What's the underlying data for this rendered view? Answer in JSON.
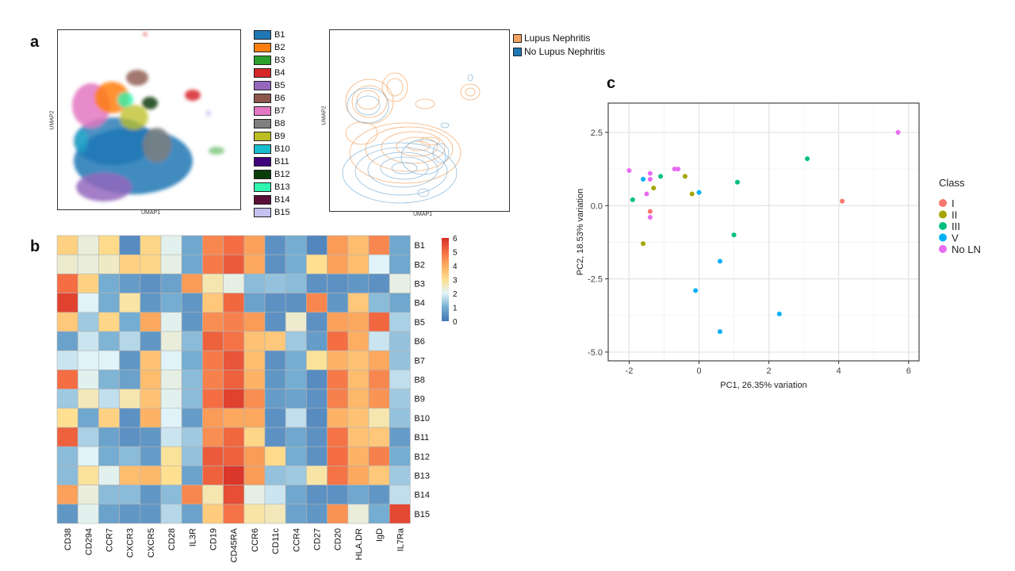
{
  "panels": {
    "a": "a",
    "b": "b",
    "c": "c"
  },
  "umap": {
    "xlabel": "UMAP1",
    "ylabel": "UMAP2",
    "clusters": [
      {
        "label": "B1",
        "color": "#1f77b4"
      },
      {
        "label": "B2",
        "color": "#ff7f0e"
      },
      {
        "label": "B3",
        "color": "#2ca02c"
      },
      {
        "label": "B4",
        "color": "#d62728"
      },
      {
        "label": "B5",
        "color": "#9467bd"
      },
      {
        "label": "B6",
        "color": "#8c564b"
      },
      {
        "label": "B7",
        "color": "#e377c2"
      },
      {
        "label": "B8",
        "color": "#7f7f7f"
      },
      {
        "label": "B9",
        "color": "#bcbd22"
      },
      {
        "label": "B10",
        "color": "#17becf"
      },
      {
        "label": "B11",
        "color": "#3f007d"
      },
      {
        "label": "B12",
        "color": "#0b3d0b"
      },
      {
        "label": "B13",
        "color": "#2ef5b0"
      },
      {
        "label": "B14",
        "color": "#5a0f38"
      },
      {
        "label": "B15",
        "color": "#c5c1ef"
      }
    ],
    "groups": [
      {
        "label": "Lupus Nephritis",
        "color": "#f4a460"
      },
      {
        "label": "No Lupus Nephritis",
        "color": "#1f77b4"
      }
    ]
  },
  "chart_data": [
    {
      "type": "heatmap",
      "rows": [
        "B1",
        "B2",
        "B3",
        "B4",
        "B5",
        "B6",
        "B7",
        "B8",
        "B9",
        "B10",
        "B11",
        "B12",
        "B13",
        "B14",
        "B15"
      ],
      "columns": [
        "CD38",
        "CD294",
        "CCR7",
        "CXCR3",
        "CXCR5",
        "CD28",
        "IL3R",
        "CD19",
        "CD45RA",
        "CCR6",
        "CD11c",
        "CCR4",
        "CD27",
        "CD20",
        "HLA.DR",
        "IgD",
        "IL7Ra"
      ],
      "values": [
        [
          3.3,
          2.3,
          3.1,
          0.4,
          3.2,
          2.1,
          0.9,
          4.6,
          5.0,
          4.2,
          0.5,
          1.0,
          0.3,
          4.3,
          3.7,
          4.6,
          0.9
        ],
        [
          2.4,
          2.3,
          2.5,
          3.3,
          3.2,
          2.2,
          0.9,
          4.8,
          5.3,
          4.1,
          0.5,
          1.0,
          3.0,
          4.2,
          3.7,
          2.0,
          0.9
        ],
        [
          5.0,
          3.3,
          1.0,
          0.7,
          0.5,
          0.8,
          4.3,
          2.7,
          2.2,
          1.2,
          1.3,
          1.2,
          0.5,
          0.5,
          0.6,
          0.5,
          2.2
        ],
        [
          5.7,
          2.0,
          1.0,
          2.8,
          0.6,
          1.0,
          0.6,
          3.5,
          5.1,
          0.8,
          0.5,
          0.5,
          4.6,
          0.6,
          3.5,
          1.2,
          0.9
        ],
        [
          3.5,
          1.4,
          3.2,
          1.0,
          4.1,
          2.1,
          0.6,
          4.5,
          4.7,
          4.3,
          0.5,
          2.4,
          0.5,
          4.2,
          4.1,
          5.1,
          1.5
        ],
        [
          0.8,
          1.8,
          1.1,
          1.6,
          0.6,
          2.3,
          1.2,
          5.2,
          4.9,
          3.6,
          3.5,
          1.4,
          0.7,
          5.0,
          4.0,
          1.8,
          1.3
        ],
        [
          1.8,
          2.0,
          2.0,
          0.6,
          3.6,
          2.0,
          1.0,
          4.8,
          5.4,
          3.7,
          0.5,
          1.0,
          2.9,
          3.9,
          3.6,
          4.1,
          1.3
        ],
        [
          5.0,
          2.1,
          1.1,
          0.8,
          3.7,
          2.2,
          1.2,
          4.7,
          5.2,
          3.9,
          0.6,
          1.0,
          0.4,
          4.8,
          3.7,
          4.6,
          1.7
        ],
        [
          1.4,
          2.6,
          1.7,
          2.7,
          3.6,
          2.1,
          1.2,
          5.0,
          5.7,
          4.5,
          0.7,
          0.8,
          0.5,
          4.7,
          3.8,
          4.4,
          1.4
        ],
        [
          3.0,
          0.9,
          3.3,
          0.5,
          3.9,
          2.0,
          0.7,
          4.3,
          4.1,
          4.1,
          0.5,
          1.7,
          0.4,
          3.9,
          3.6,
          2.7,
          1.3
        ],
        [
          5.2,
          1.5,
          0.8,
          0.5,
          0.6,
          1.8,
          1.4,
          4.5,
          5.1,
          3.2,
          0.5,
          0.9,
          0.5,
          4.9,
          3.6,
          3.5,
          0.7
        ],
        [
          1.2,
          2.0,
          1.0,
          1.2,
          0.7,
          2.9,
          1.3,
          5.3,
          5.2,
          4.3,
          3.1,
          1.0,
          0.5,
          5.0,
          3.9,
          4.7,
          1.0
        ],
        [
          1.2,
          2.9,
          2.1,
          3.7,
          3.8,
          3.0,
          0.8,
          5.2,
          5.9,
          4.3,
          1.3,
          1.4,
          2.8,
          4.9,
          4.1,
          3.5,
          1.4
        ],
        [
          4.2,
          2.3,
          1.2,
          1.2,
          0.6,
          1.2,
          4.6,
          2.7,
          5.5,
          2.2,
          1.8,
          0.9,
          0.5,
          0.5,
          0.9,
          0.6,
          1.7
        ],
        [
          0.6,
          2.1,
          0.8,
          0.6,
          0.6,
          1.6,
          0.8,
          3.4,
          4.9,
          2.8,
          2.6,
          0.8,
          0.6,
          4.4,
          2.3,
          1.0,
          5.6
        ]
      ],
      "scale": {
        "min": 0,
        "max": 6,
        "ticks": [
          0,
          1,
          2,
          3,
          4,
          5,
          6
        ]
      }
    },
    {
      "type": "scatter",
      "xlabel": "PC1, 26.35% variation",
      "ylabel": "PC2, 18.53% variation",
      "xlim": [
        -2.6,
        6.3
      ],
      "ylim": [
        -5.3,
        3.5
      ],
      "xticks": [
        -2,
        0,
        2,
        4,
        6
      ],
      "yticks": [
        2.5,
        0.0,
        -2.5,
        -5.0
      ],
      "xtick_labels": [
        "-2",
        "0",
        "2",
        "4",
        "6"
      ],
      "ytick_labels": [
        "2.5",
        "0.0",
        "-2.5",
        "-5.0"
      ],
      "legend_title": "Class",
      "legend_position": "right",
      "series": [
        {
          "name": "I",
          "color": "#f8766d",
          "points": [
            [
              -1.4,
              -0.2
            ],
            [
              4.1,
              0.15
            ]
          ]
        },
        {
          "name": "II",
          "color": "#a3a500",
          "points": [
            [
              -1.3,
              0.6
            ],
            [
              -0.4,
              1.0
            ],
            [
              -0.2,
              0.4
            ],
            [
              -1.6,
              -1.3
            ]
          ]
        },
        {
          "name": "III",
          "color": "#00bf7d",
          "points": [
            [
              -1.1,
              1.0
            ],
            [
              -1.9,
              0.2
            ],
            [
              1.1,
              0.8
            ],
            [
              3.1,
              1.6
            ],
            [
              1.0,
              -1.0
            ]
          ]
        },
        {
          "name": "V",
          "color": "#00b0f6",
          "points": [
            [
              -1.6,
              0.9
            ],
            [
              0.0,
              0.45
            ],
            [
              0.6,
              -1.9
            ],
            [
              -0.1,
              -2.9
            ],
            [
              2.3,
              -3.7
            ],
            [
              0.6,
              -4.3
            ]
          ]
        },
        {
          "name": "No LN",
          "color": "#e76bf3",
          "points": [
            [
              -2.0,
              1.2
            ],
            [
              -1.4,
              1.1
            ],
            [
              -1.4,
              0.9
            ],
            [
              -0.7,
              1.25
            ],
            [
              -0.6,
              1.25
            ],
            [
              -1.5,
              0.4
            ],
            [
              -1.4,
              -0.4
            ],
            [
              5.7,
              2.5
            ]
          ]
        }
      ]
    }
  ]
}
